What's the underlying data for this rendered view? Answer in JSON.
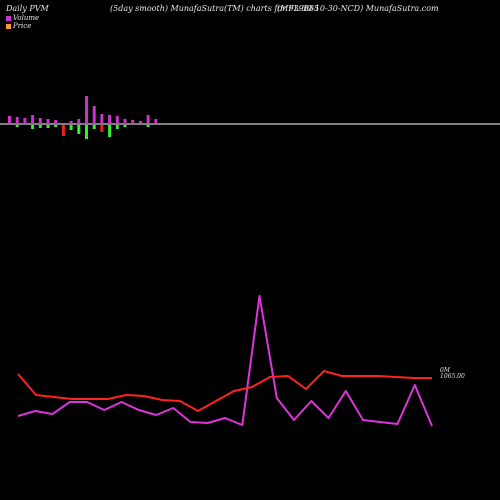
{
  "header": {
    "left": "Daily PVM",
    "middle": "(5day smooth) MunafaSutra(TM) charts for 939885",
    "right": "(MFL-30-10-30-NCD) MunafaSutra.com"
  },
  "colors": {
    "background": "#000000",
    "volume_legend": "#cc33cc",
    "price_legend": "#ff9933",
    "volume_line": "#dd33dd",
    "price_line": "#ff2222",
    "vol_bar_up": "#cc33cc",
    "vol_bar_down_green": "#33ee33",
    "vol_bar_down_red": "#ee2222",
    "axis_line": "#ffffff"
  },
  "chart_data": {
    "type": "line",
    "title": "Daily PVM",
    "legend": [
      {
        "name": "Volume",
        "color": "#cc33cc"
      },
      {
        "name": "Price",
        "color": "#ff9933"
      }
    ],
    "last_label": [
      "0M",
      "1065.00"
    ],
    "volume_bars": [
      {
        "up": 8,
        "down": 0,
        "down_color": "green"
      },
      {
        "up": 7,
        "down": 2,
        "down_color": "green"
      },
      {
        "up": 6,
        "down": 0,
        "down_color": "green"
      },
      {
        "up": 9,
        "down": 4,
        "down_color": "green"
      },
      {
        "up": 6,
        "down": 3,
        "down_color": "green"
      },
      {
        "up": 5,
        "down": 3,
        "down_color": "green"
      },
      {
        "up": 4,
        "down": 2,
        "down_color": "green"
      },
      {
        "up": 0,
        "down": 11,
        "down_color": "red"
      },
      {
        "up": 3,
        "down": 5,
        "down_color": "green"
      },
      {
        "up": 5,
        "down": 9,
        "down_color": "green"
      },
      {
        "up": 28,
        "down": 14,
        "down_color": "green"
      },
      {
        "up": 18,
        "down": 4,
        "down_color": "green"
      },
      {
        "up": 10,
        "down": 7,
        "down_color": "red"
      },
      {
        "up": 9,
        "down": 12,
        "down_color": "green"
      },
      {
        "up": 8,
        "down": 4,
        "down_color": "green"
      },
      {
        "up": 5,
        "down": 2,
        "down_color": "green"
      },
      {
        "up": 4,
        "down": 0,
        "down_color": "green"
      },
      {
        "up": 3,
        "down": 0,
        "down_color": "green"
      },
      {
        "up": 9,
        "down": 2,
        "down_color": "green"
      },
      {
        "up": 5,
        "down": 0,
        "down_color": "green"
      }
    ],
    "volume_line": [
      18,
      23,
      20,
      32,
      32,
      24,
      32,
      24,
      19,
      26,
      12,
      11,
      16,
      9,
      138,
      36,
      14,
      33,
      16,
      43,
      14,
      12,
      10,
      49,
      8
    ],
    "price_line": [
      60,
      39,
      37,
      35,
      35,
      35,
      39,
      38,
      34,
      33,
      23,
      33,
      43,
      47,
      57,
      58,
      45,
      63,
      58,
      58,
      58,
      57,
      56,
      56
    ]
  }
}
